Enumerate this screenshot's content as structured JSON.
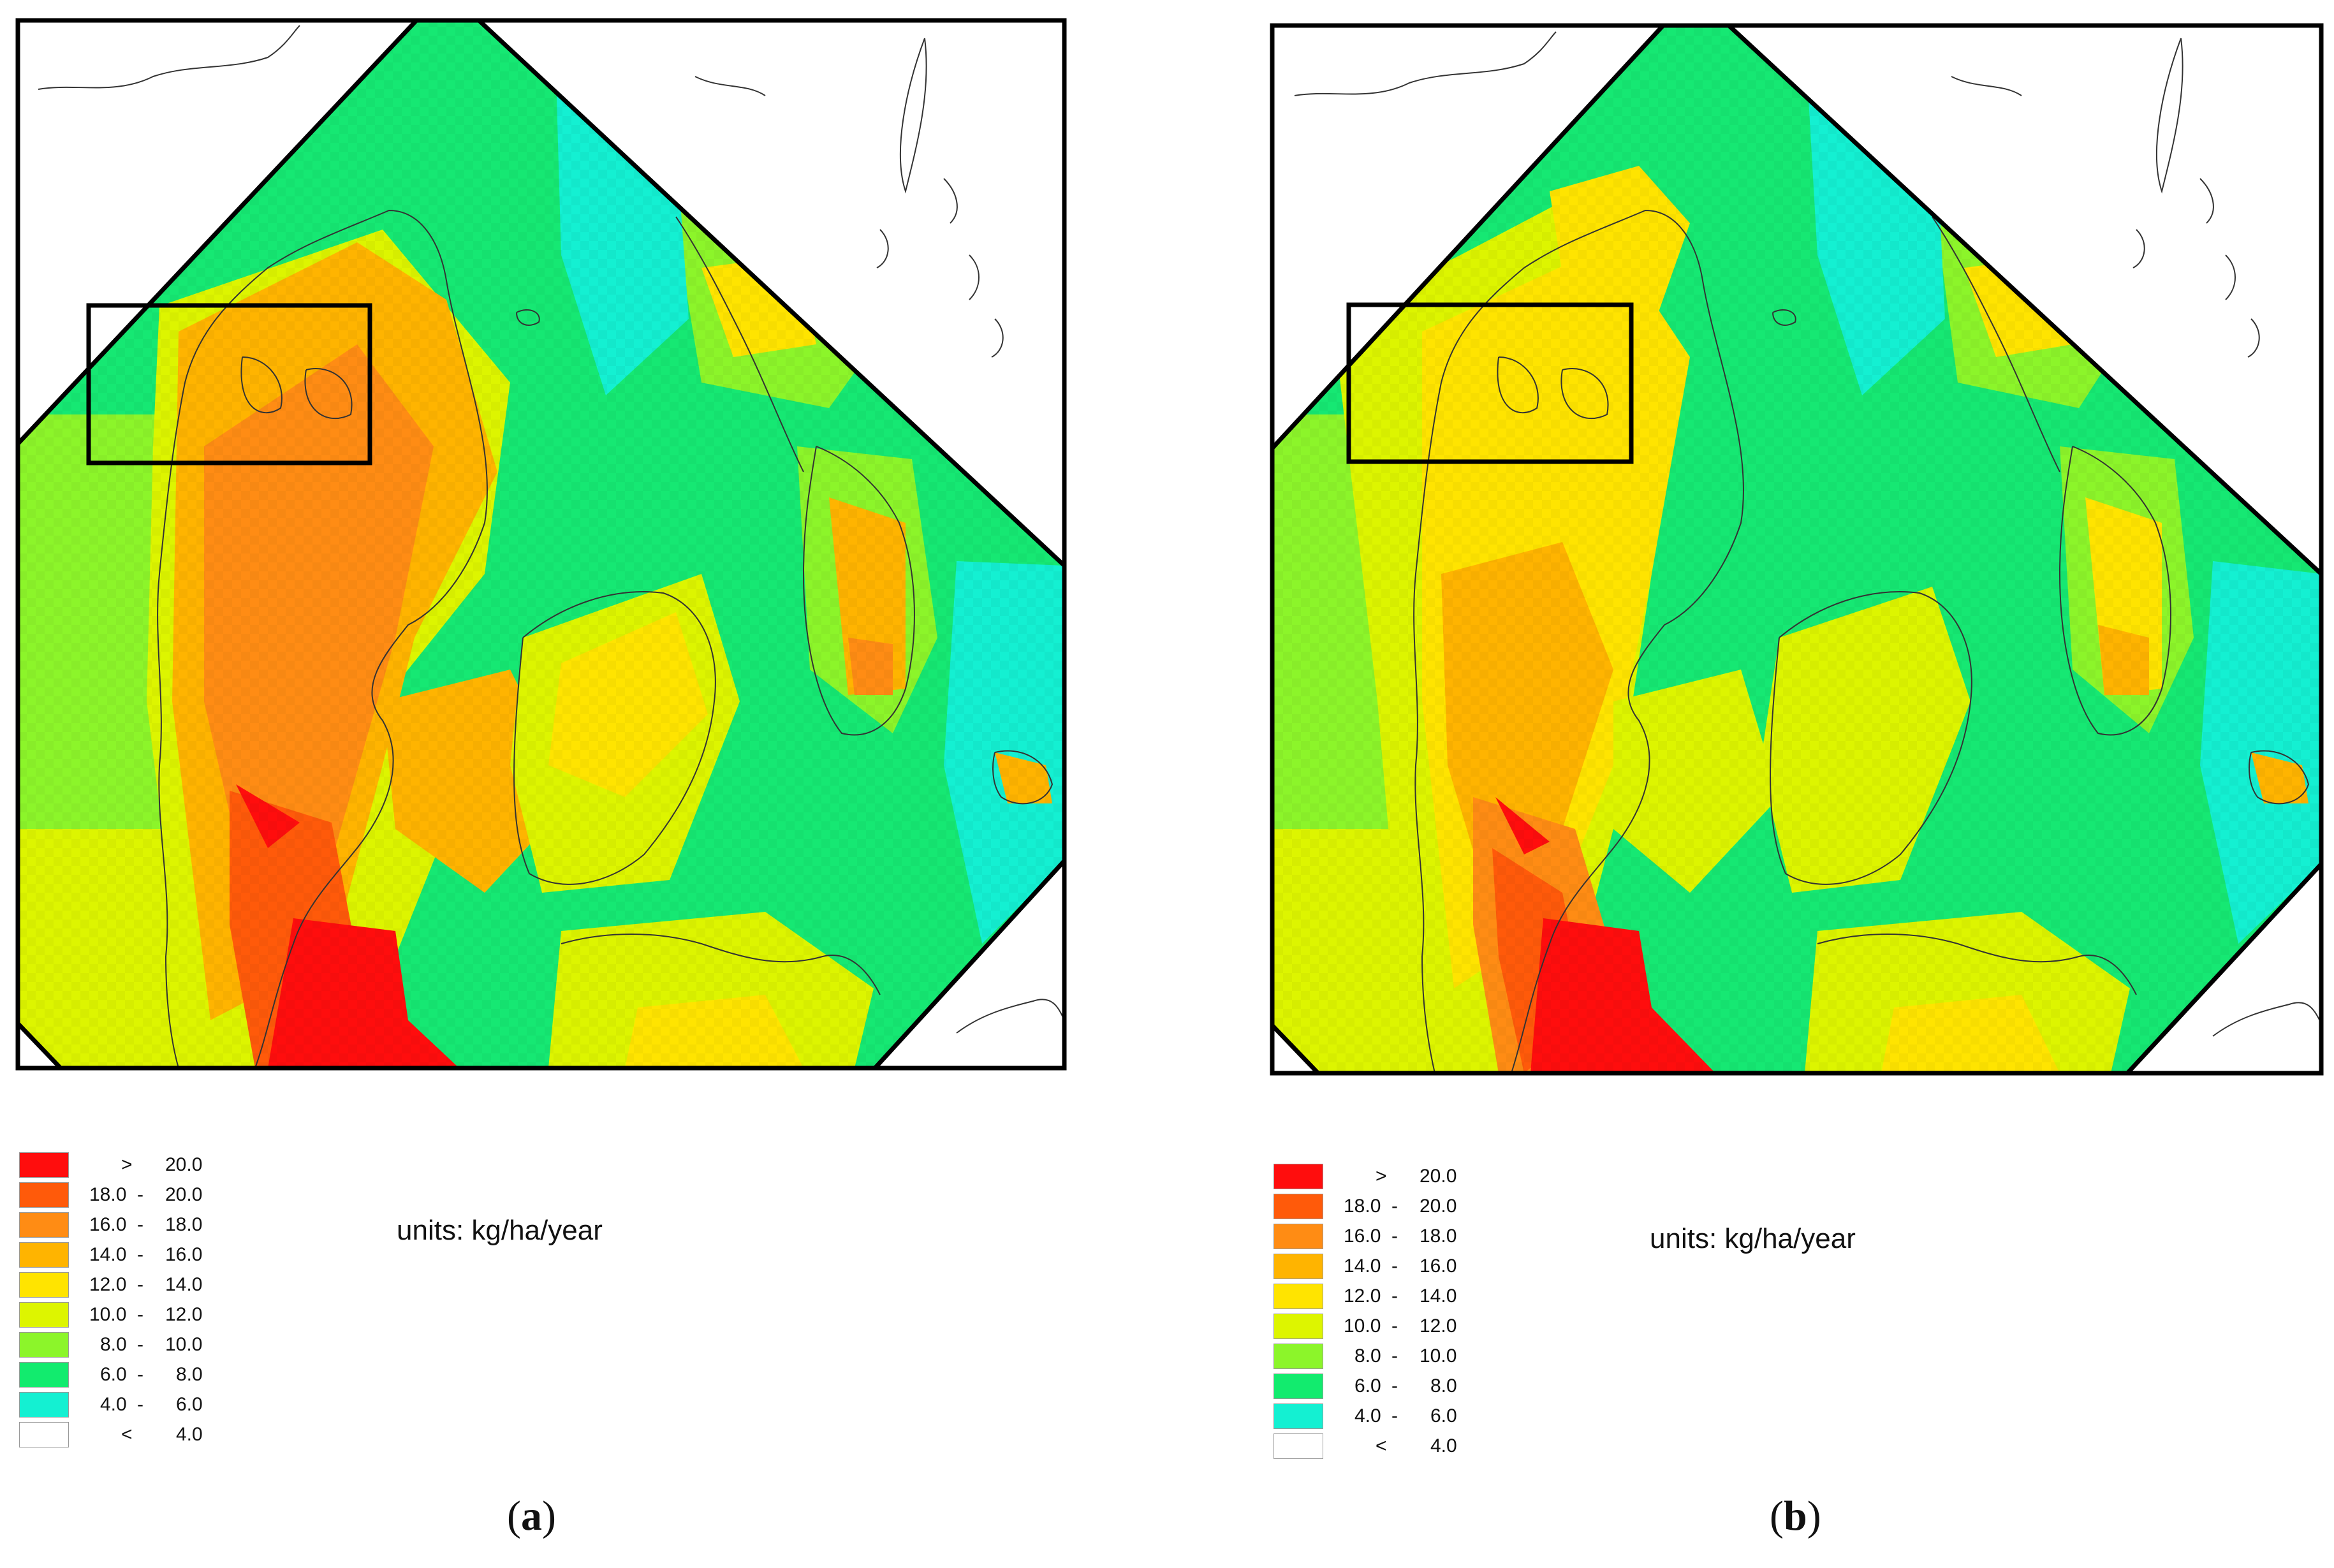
{
  "figure": {
    "panels": [
      {
        "id": "a",
        "caption_letter": "a",
        "units_label": "units: kg/ha/year"
      },
      {
        "id": "b",
        "caption_letter": "b",
        "units_label": "units: kg/ha/year"
      }
    ],
    "legend": [
      {
        "symbol": ">",
        "low": "",
        "high": "20.0",
        "color": "#ff0d0d"
      },
      {
        "symbol": "",
        "low": "18.0",
        "high": "20.0",
        "color": "#ff5a0a"
      },
      {
        "symbol": "",
        "low": "16.0",
        "high": "18.0",
        "color": "#ff8c14"
      },
      {
        "symbol": "",
        "low": "14.0",
        "high": "16.0",
        "color": "#ffb400"
      },
      {
        "symbol": "",
        "low": "12.0",
        "high": "14.0",
        "color": "#ffe400"
      },
      {
        "symbol": "",
        "low": "10.0",
        "high": "12.0",
        "color": "#ddf500"
      },
      {
        "symbol": "",
        "low": "8.0",
        "high": "10.0",
        "color": "#8cf52a"
      },
      {
        "symbol": "",
        "low": "6.0",
        "high": "8.0",
        "color": "#12eb6e"
      },
      {
        "symbol": "",
        "low": "4.0",
        "high": "6.0",
        "color": "#14f0d2"
      },
      {
        "symbol": "<",
        "low": "",
        "high": "4.0",
        "color": "#ffffff"
      }
    ]
  }
}
